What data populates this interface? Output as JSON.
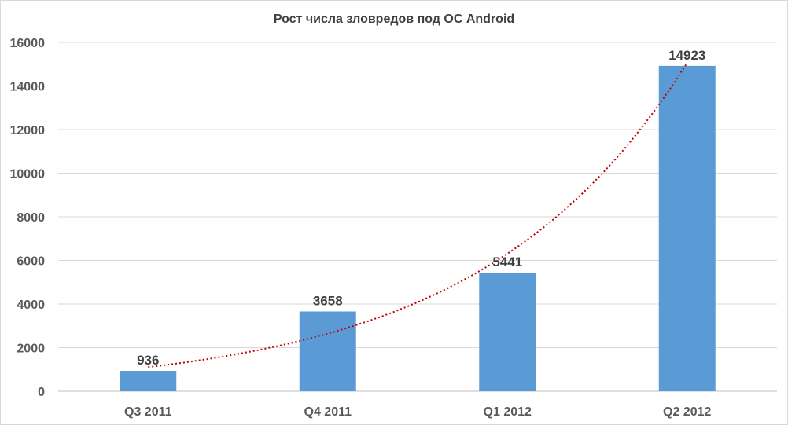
{
  "chart_data": {
    "type": "bar",
    "title": "Рост числа зловредов под ОС Android",
    "xlabel": "",
    "ylabel": "",
    "categories": [
      "Q3 2011",
      "Q4 2011",
      "Q1 2012",
      "Q2 2012"
    ],
    "values": [
      936,
      3658,
      5441,
      14923
    ],
    "ylim": [
      0,
      16000
    ],
    "yticks": [
      0,
      2000,
      4000,
      6000,
      8000,
      10000,
      12000,
      14000,
      16000
    ],
    "grid": true,
    "legend": "none",
    "data_labels": true,
    "trendline": {
      "type": "exponential",
      "style": "dotted"
    },
    "colors": {
      "bar": "#5b9bd5",
      "trendline": "#c00000",
      "grid": "#d9d9d9",
      "text": "#595959"
    }
  }
}
